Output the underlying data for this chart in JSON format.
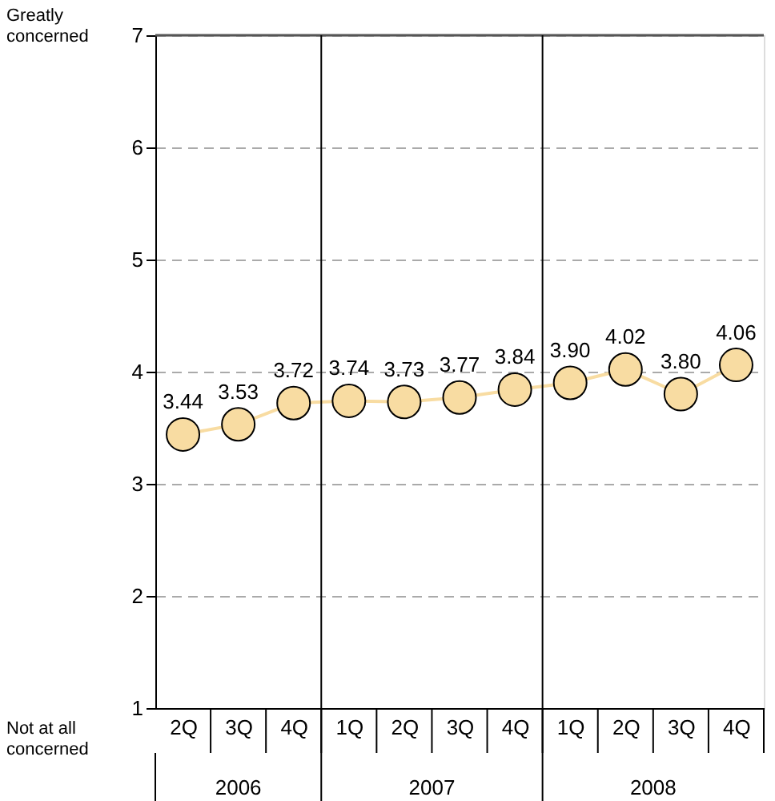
{
  "chart_data": {
    "type": "line",
    "categories": [
      "2Q",
      "3Q",
      "4Q",
      "1Q",
      "2Q",
      "3Q",
      "4Q",
      "1Q",
      "2Q",
      "3Q",
      "4Q"
    ],
    "series": [
      {
        "color": "#f8dca2",
        "values": [
          3.44,
          3.53,
          3.72,
          3.74,
          3.73,
          3.77,
          3.84,
          3.9,
          4.02,
          3.8,
          4.06
        ],
        "value_labels": [
          "3.44",
          "3.53",
          "3.72",
          "3.74",
          "3.73",
          "3.77",
          "3.84",
          "3.90",
          "4.02",
          "3.80",
          "4.06"
        ]
      }
    ],
    "ylim": [
      1,
      7
    ],
    "yticks": [
      1,
      2,
      3,
      4,
      5,
      6,
      7
    ],
    "grid": "y",
    "marker": "circle",
    "line_style": "solid",
    "annotations": [
      "Greatly\nconcerned",
      "Not at all\nconcerned",
      "2006",
      "2007",
      "2008"
    ]
  }
}
